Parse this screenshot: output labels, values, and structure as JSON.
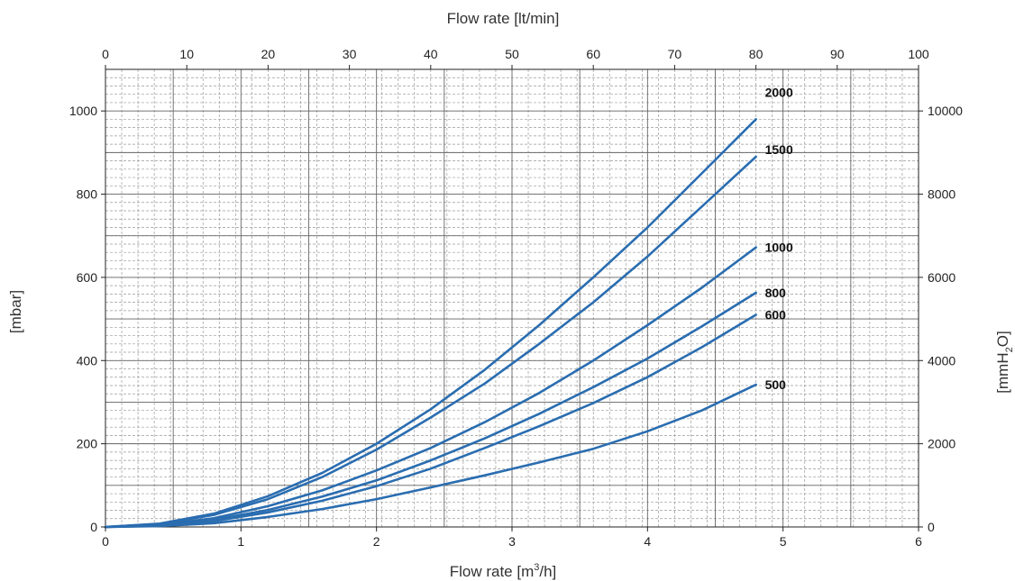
{
  "chart_data": {
    "type": "line",
    "x_bottom": {
      "label_main": "Flow rate [m",
      "label_sup": "3",
      "label_tail": "/h]",
      "range": [
        0,
        6
      ],
      "ticks": [
        "0",
        "1",
        "2",
        "3",
        "4",
        "5",
        "6"
      ]
    },
    "x_top": {
      "label": "Flow rate [lt/min]",
      "range": [
        0,
        100
      ],
      "ticks": [
        "0",
        "10",
        "20",
        "30",
        "40",
        "50",
        "60",
        "70",
        "80",
        "90",
        "100"
      ]
    },
    "y_left": {
      "label": "[mbar]",
      "range": [
        0,
        1100
      ],
      "ticks": [
        "0",
        "200",
        "400",
        "600",
        "800",
        "1000"
      ]
    },
    "y_right": {
      "label_main": "[mmH",
      "label_sub": "2",
      "label_tail": "O]",
      "range": [
        0,
        11000
      ],
      "ticks": [
        "0",
        "2000",
        "4000",
        "6000",
        "8000",
        "10000"
      ]
    },
    "grid": true,
    "series_color": "#2a6db0",
    "series": [
      {
        "name": "2000",
        "x": [
          0,
          0.4,
          0.8,
          1.2,
          1.6,
          2.0,
          2.4,
          2.8,
          3.2,
          3.6,
          4.0,
          4.4,
          4.8
        ],
        "y": [
          0,
          8,
          32,
          74,
          130,
          200,
          283,
          378,
          485,
          600,
          720,
          850,
          980
        ]
      },
      {
        "name": "1500",
        "x": [
          0,
          0.4,
          0.8,
          1.2,
          1.6,
          2.0,
          2.4,
          2.8,
          3.2,
          3.6,
          4.0,
          4.4,
          4.8
        ],
        "y": [
          0,
          7,
          29,
          67,
          120,
          186,
          263,
          345,
          440,
          540,
          650,
          770,
          890
        ]
      },
      {
        "name": "1000",
        "x": [
          0,
          0.4,
          0.8,
          1.2,
          1.6,
          2.0,
          2.4,
          2.8,
          3.2,
          3.6,
          4.0,
          4.4,
          4.8
        ],
        "y": [
          0,
          5,
          21,
          50,
          88,
          136,
          190,
          252,
          322,
          400,
          485,
          575,
          672
        ]
      },
      {
        "name": "800",
        "x": [
          0,
          0.4,
          0.8,
          1.2,
          1.6,
          2.0,
          2.4,
          2.8,
          3.2,
          3.6,
          4.0,
          4.4,
          4.8
        ],
        "y": [
          0,
          4,
          17,
          41,
          73,
          112,
          160,
          213,
          272,
          336,
          405,
          482,
          563
        ]
      },
      {
        "name": "600",
        "x": [
          0,
          0.4,
          0.8,
          1.2,
          1.6,
          2.0,
          2.4,
          2.8,
          3.2,
          3.6,
          4.0,
          4.4,
          4.8
        ],
        "y": [
          0,
          3,
          14,
          35,
          63,
          98,
          140,
          190,
          242,
          298,
          360,
          432,
          510
        ]
      },
      {
        "name": "500",
        "x": [
          0,
          0.4,
          0.8,
          1.2,
          1.6,
          2.0,
          2.4,
          2.8,
          3.2,
          3.6,
          4.0,
          4.4,
          4.8
        ],
        "y": [
          0,
          2,
          9,
          24,
          43,
          67,
          95,
          124,
          155,
          188,
          230,
          280,
          342
        ]
      }
    ]
  }
}
